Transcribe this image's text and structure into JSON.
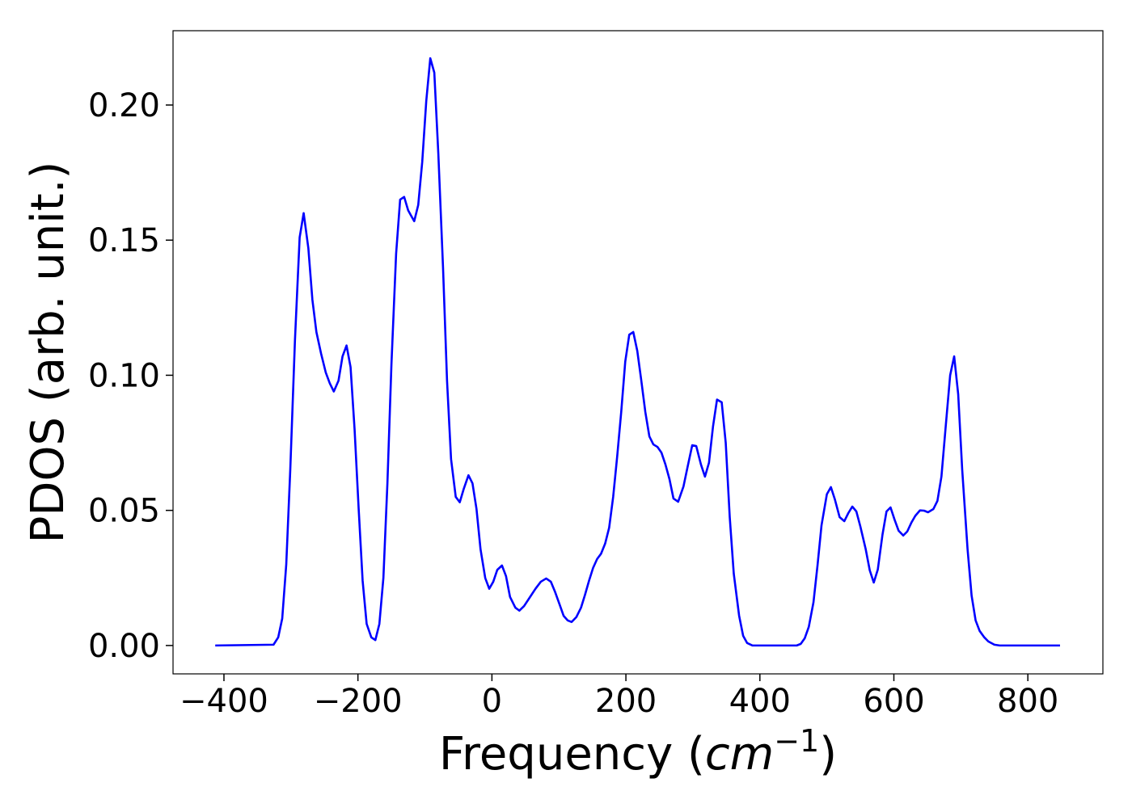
{
  "chart_data": {
    "type": "line",
    "y_label": "PDOS (arb. unit.)",
    "x_label": [
      "Frequency (",
      "cm",
      "−1",
      ")"
    ],
    "xlim": [
      -476,
      912
    ],
    "ylim": [
      -0.0105,
      0.2275
    ],
    "xticks": [
      {
        "value": -400,
        "label": "−400"
      },
      {
        "value": -200,
        "label": "−200"
      },
      0,
      200,
      400,
      600,
      800
    ],
    "yticks": [
      {
        "value": 0,
        "label": "0.00"
      },
      {
        "value": 0.05,
        "label": "0.05"
      },
      {
        "value": 0.1,
        "label": "0.10"
      },
      {
        "value": 0.15,
        "label": "0.15"
      },
      {
        "value": 0.2,
        "label": "0.20"
      }
    ],
    "color": "#0000ff",
    "x": [
      -413,
      -326,
      -319,
      -313,
      -307,
      -301,
      -294,
      -287,
      -281,
      -274,
      -268,
      -262,
      -255,
      -248,
      -242,
      -236,
      -229,
      -223,
      -217,
      -211,
      -205,
      -199,
      -193,
      -187,
      -180,
      -174,
      -168,
      -162,
      -156,
      -150,
      -143,
      -137,
      -131,
      -125,
      -116,
      -110,
      -104,
      -98,
      -92,
      -86,
      -80,
      -73,
      -67,
      -61,
      -54,
      -48,
      -42,
      -35,
      -29,
      -23,
      -17,
      -10,
      -4,
      2,
      8,
      15,
      21,
      27,
      35,
      41,
      48,
      56,
      65,
      73,
      81,
      88,
      94,
      101,
      107,
      113,
      119,
      126,
      133,
      139,
      145,
      151,
      157,
      163,
      169,
      175,
      181,
      187,
      193,
      199,
      205,
      211,
      217,
      223,
      229,
      235,
      241,
      247,
      253,
      259,
      265,
      271,
      278,
      286,
      292,
      299,
      305,
      312,
      318,
      324,
      330,
      336,
      343,
      349,
      355,
      361,
      369,
      375,
      381,
      389,
      455,
      461,
      467,
      473,
      480,
      486,
      492,
      500,
      506,
      512,
      519,
      526,
      532,
      538,
      544,
      550,
      558,
      564,
      570,
      576,
      583,
      589,
      595,
      601,
      607,
      614,
      620,
      626,
      632,
      639,
      645,
      651,
      659,
      665,
      671,
      677,
      684,
      690,
      696,
      702,
      710,
      716,
      722,
      728,
      735,
      741,
      750,
      758,
      848
    ],
    "values": [
      0,
      0.0003,
      0.003,
      0.01,
      0.03,
      0.065,
      0.113,
      0.151,
      0.16,
      0.147,
      0.128,
      0.116,
      0.108,
      0.101,
      0.097,
      0.094,
      0.098,
      0.107,
      0.111,
      0.103,
      0.08,
      0.051,
      0.024,
      0.008,
      0.003,
      0.002,
      0.008,
      0.025,
      0.06,
      0.104,
      0.145,
      0.165,
      0.166,
      0.161,
      0.157,
      0.163,
      0.179,
      0.2015,
      0.2173,
      0.212,
      0.182,
      0.14,
      0.098,
      0.069,
      0.055,
      0.053,
      0.058,
      0.063,
      0.06,
      0.0505,
      0.0356,
      0.025,
      0.021,
      0.0236,
      0.028,
      0.0296,
      0.0257,
      0.018,
      0.014,
      0.0129,
      0.0146,
      0.0176,
      0.021,
      0.0236,
      0.0248,
      0.0236,
      0.02,
      0.0152,
      0.011,
      0.0093,
      0.0087,
      0.0105,
      0.014,
      0.0188,
      0.024,
      0.0287,
      0.032,
      0.034,
      0.0377,
      0.0436,
      0.055,
      0.07,
      0.0864,
      0.105,
      0.115,
      0.116,
      0.109,
      0.098,
      0.0864,
      0.0774,
      0.0744,
      0.0735,
      0.0714,
      0.067,
      0.0616,
      0.0544,
      0.0532,
      0.0589,
      0.066,
      0.0741,
      0.0738,
      0.067,
      0.0625,
      0.0676,
      0.081,
      0.091,
      0.09,
      0.075,
      0.0475,
      0.0266,
      0.011,
      0.0036,
      0.0009,
      0,
      0,
      0.0006,
      0.0027,
      0.0069,
      0.016,
      0.0296,
      0.0445,
      0.056,
      0.0586,
      0.054,
      0.0475,
      0.046,
      0.049,
      0.0514,
      0.0496,
      0.044,
      0.0356,
      0.0278,
      0.0233,
      0.0281,
      0.041,
      0.0496,
      0.0511,
      0.0466,
      0.0425,
      0.0407,
      0.0422,
      0.0454,
      0.048,
      0.05,
      0.0499,
      0.0493,
      0.0505,
      0.0535,
      0.0625,
      0.08,
      0.1,
      0.107,
      0.093,
      0.065,
      0.0356,
      0.0185,
      0.0093,
      0.0054,
      0.003,
      0.0015,
      0.0003,
      0,
      0
    ]
  }
}
